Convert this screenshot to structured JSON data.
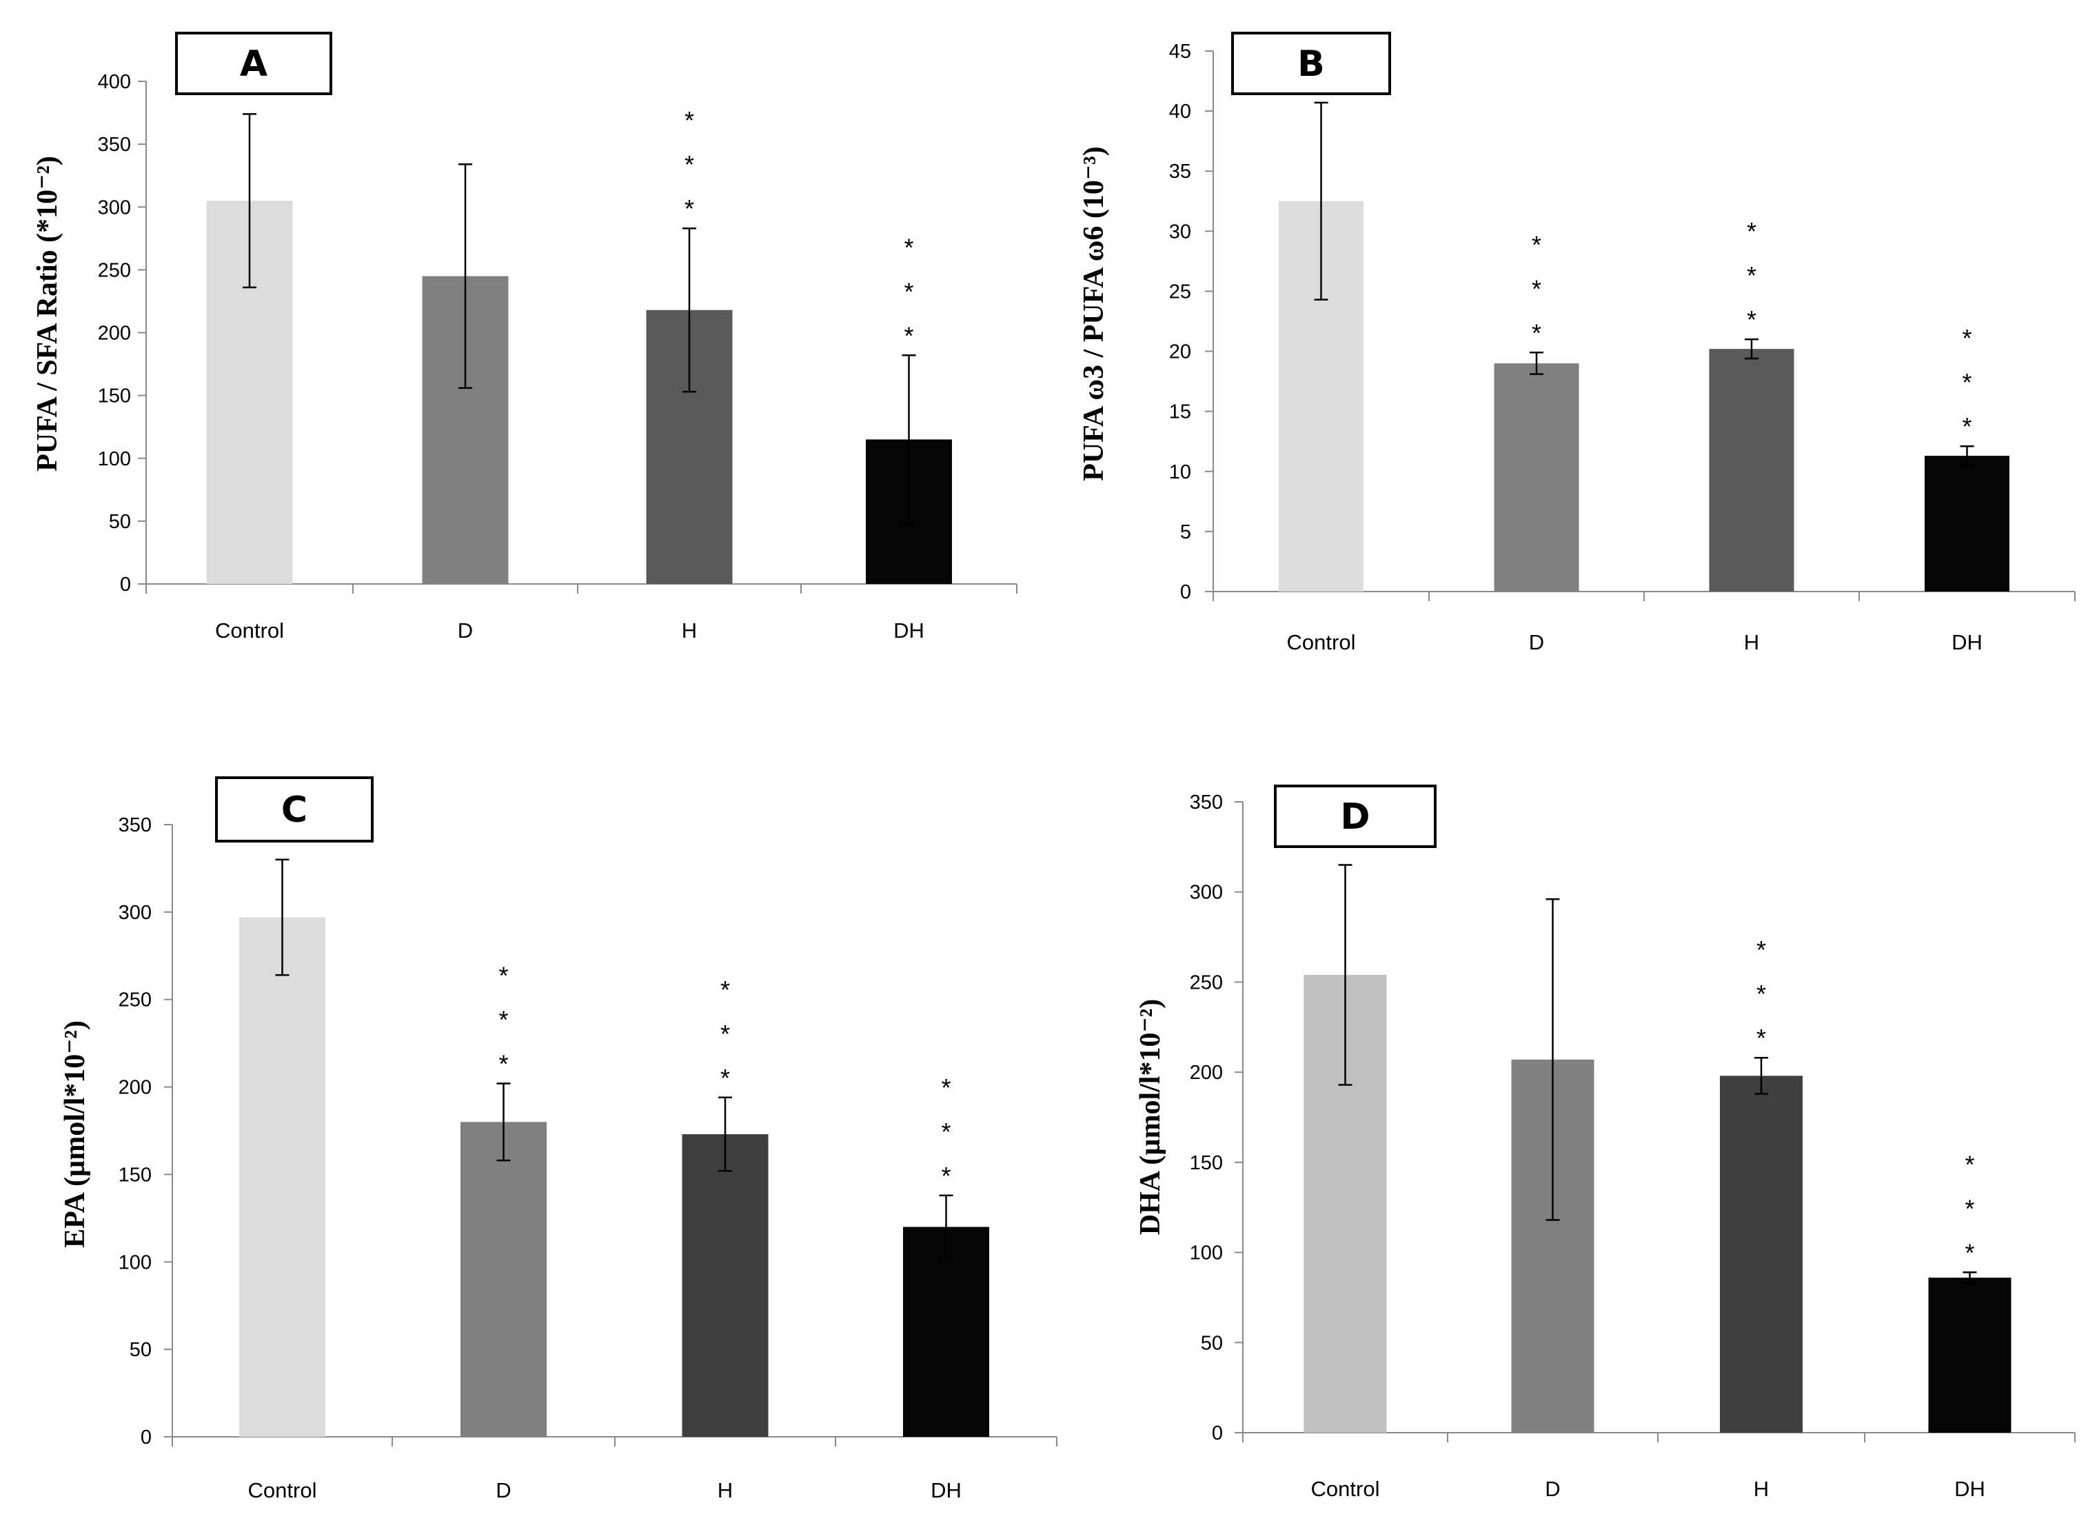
{
  "chart_data": [
    {
      "panel": "A",
      "type": "bar",
      "categories": [
        "Control",
        "D",
        "H",
        "DH"
      ],
      "values": [
        305,
        245,
        218,
        115
      ],
      "errors": [
        69,
        89,
        65,
        67
      ],
      "significance": [
        "",
        "",
        "*\n*\n*",
        "*\n*\n*"
      ],
      "ylabel": "PUFA / SFA Ratio (*10⁻²)",
      "ylim": [
        0,
        400
      ],
      "yticks": [
        0,
        50,
        100,
        150,
        200,
        250,
        300,
        350,
        400
      ],
      "colors": [
        "#dcdcdc",
        "#808080",
        "#5a5a5a",
        "#050505"
      ]
    },
    {
      "panel": "B",
      "type": "bar",
      "categories": [
        "Control",
        "D",
        "H",
        "DH"
      ],
      "values": [
        32.5,
        19,
        20.2,
        11.3
      ],
      "errors": [
        8.2,
        0.9,
        0.8,
        0.8
      ],
      "significance": [
        "",
        "*\n*\n*",
        "*\n*\n*",
        "*\n*\n*"
      ],
      "ylabel": "PUFA ω3 / PUFA ω6 (10⁻³)",
      "ylim": [
        0,
        45
      ],
      "yticks": [
        0,
        5,
        10,
        15,
        20,
        25,
        30,
        35,
        40,
        45
      ],
      "colors": [
        "#dcdcdc",
        "#808080",
        "#5a5a5a",
        "#050505"
      ]
    },
    {
      "panel": "C",
      "type": "bar",
      "categories": [
        "Control",
        "D",
        "H",
        "DH"
      ],
      "values": [
        297,
        180,
        173,
        120
      ],
      "errors": [
        33,
        22,
        21,
        18
      ],
      "significance": [
        "",
        "*\n*\n*",
        "*\n*\n*",
        "*\n*\n*"
      ],
      "ylabel": "EPA (µmol/l*10⁻²)",
      "ylim": [
        0,
        350
      ],
      "yticks": [
        0,
        50,
        100,
        150,
        200,
        250,
        300,
        350
      ],
      "colors": [
        "#dcdcdc",
        "#808080",
        "#3f3f3f",
        "#050505"
      ]
    },
    {
      "panel": "D",
      "type": "bar",
      "categories": [
        "Control",
        "D",
        "H",
        "DH"
      ],
      "values": [
        254,
        207,
        198,
        86
      ],
      "errors": [
        61,
        89,
        10,
        3
      ],
      "significance": [
        "",
        "",
        "*\n*\n*",
        "*\n*\n*"
      ],
      "ylabel": "DHA (µmol/l*10⁻²)",
      "ylim": [
        0,
        350
      ],
      "yticks": [
        0,
        50,
        100,
        150,
        200,
        250,
        300,
        350
      ],
      "colors": [
        "#c0c0c0",
        "#808080",
        "#3f3f3f",
        "#050505"
      ]
    }
  ]
}
